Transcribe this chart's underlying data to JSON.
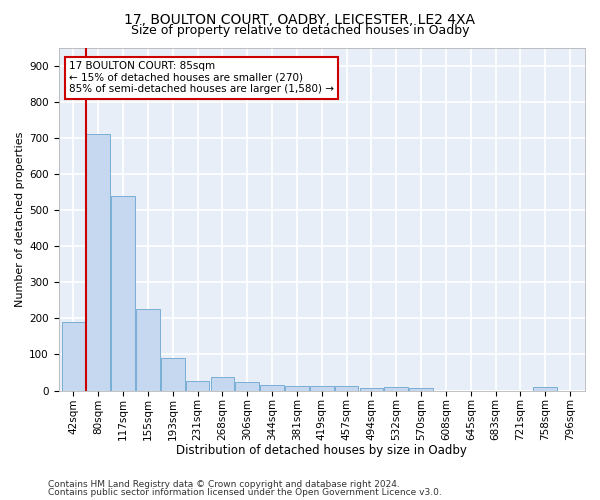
{
  "title1": "17, BOULTON COURT, OADBY, LEICESTER, LE2 4XA",
  "title2": "Size of property relative to detached houses in Oadby",
  "xlabel": "Distribution of detached houses by size in Oadby",
  "ylabel": "Number of detached properties",
  "categories": [
    "42sqm",
    "80sqm",
    "117sqm",
    "155sqm",
    "193sqm",
    "231sqm",
    "268sqm",
    "306sqm",
    "344sqm",
    "381sqm",
    "419sqm",
    "457sqm",
    "494sqm",
    "532sqm",
    "570sqm",
    "608sqm",
    "645sqm",
    "683sqm",
    "721sqm",
    "758sqm",
    "796sqm"
  ],
  "values": [
    190,
    710,
    540,
    225,
    90,
    27,
    37,
    25,
    15,
    13,
    13,
    12,
    8,
    10,
    8,
    0,
    0,
    0,
    0,
    9,
    0
  ],
  "bar_color": "#c5d8f0",
  "bar_edge_color": "#7aaed6",
  "vline_color": "#cc0000",
  "vline_x_index": 1,
  "annotation_text": "17 BOULTON COURT: 85sqm\n← 15% of detached houses are smaller (270)\n85% of semi-detached houses are larger (1,580) →",
  "annotation_box_color": "#ffffff",
  "annotation_box_edge_color": "#cc0000",
  "ylim": [
    0,
    950
  ],
  "yticks": [
    0,
    100,
    200,
    300,
    400,
    500,
    600,
    700,
    800,
    900
  ],
  "plot_background": "#e8eef8",
  "grid_color": "#ffffff",
  "footer_line1": "Contains HM Land Registry data © Crown copyright and database right 2024.",
  "footer_line2": "Contains public sector information licensed under the Open Government Licence v3.0.",
  "title1_fontsize": 10,
  "title2_fontsize": 9,
  "xlabel_fontsize": 8.5,
  "ylabel_fontsize": 8,
  "tick_fontsize": 7.5,
  "footer_fontsize": 6.5
}
